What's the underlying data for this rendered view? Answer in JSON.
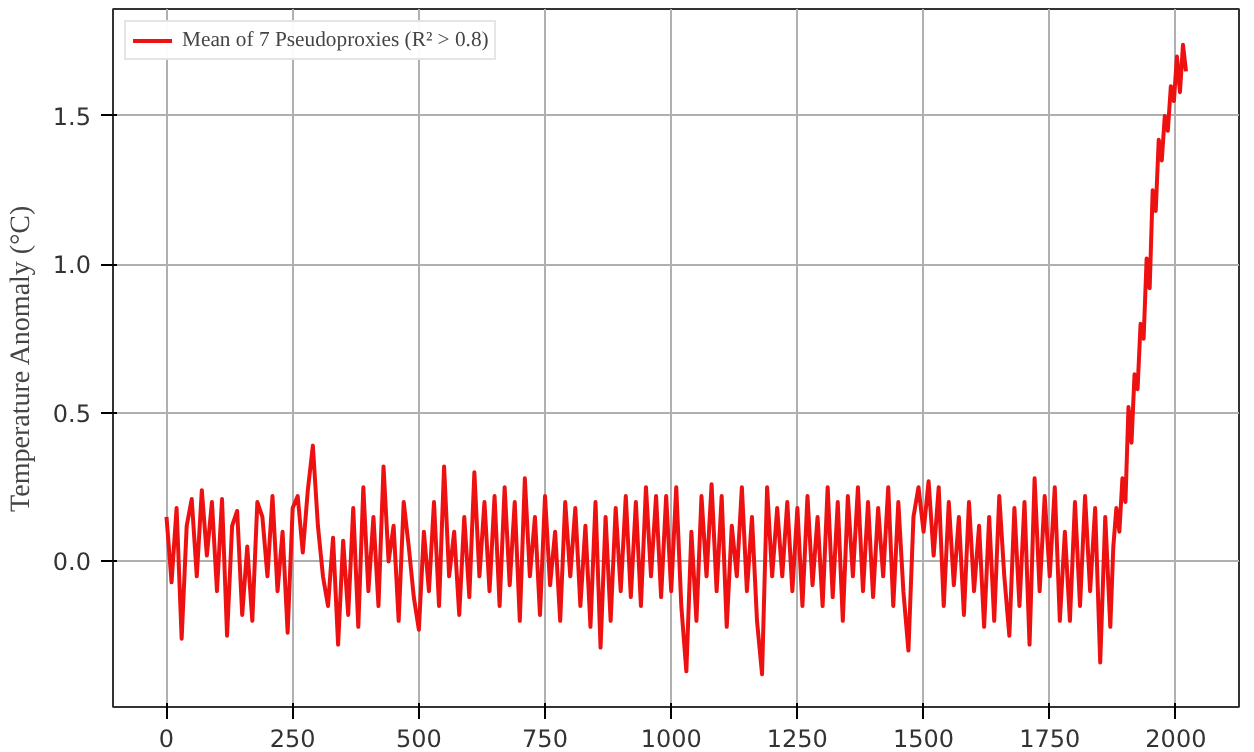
{
  "chart_data": {
    "type": "line",
    "ylabel": "Temperature Anomaly (°C)",
    "x": [
      0,
      10,
      20,
      30,
      40,
      50,
      60,
      70,
      80,
      90,
      100,
      110,
      120,
      130,
      140,
      150,
      160,
      170,
      180,
      190,
      200,
      210,
      220,
      230,
      240,
      250,
      260,
      270,
      280,
      290,
      300,
      310,
      320,
      330,
      340,
      350,
      360,
      370,
      380,
      390,
      400,
      410,
      420,
      430,
      440,
      450,
      460,
      470,
      480,
      490,
      500,
      510,
      520,
      530,
      540,
      550,
      560,
      570,
      580,
      590,
      600,
      610,
      620,
      630,
      640,
      650,
      660,
      670,
      680,
      690,
      700,
      710,
      720,
      730,
      740,
      750,
      760,
      770,
      780,
      790,
      800,
      810,
      820,
      830,
      840,
      850,
      860,
      870,
      880,
      890,
      900,
      910,
      920,
      930,
      940,
      950,
      960,
      970,
      980,
      990,
      1000,
      1010,
      1020,
      1030,
      1040,
      1050,
      1060,
      1070,
      1080,
      1090,
      1100,
      1110,
      1120,
      1130,
      1140,
      1150,
      1160,
      1170,
      1180,
      1190,
      1200,
      1210,
      1220,
      1230,
      1240,
      1250,
      1260,
      1270,
      1280,
      1290,
      1300,
      1310,
      1320,
      1330,
      1340,
      1350,
      1360,
      1370,
      1380,
      1390,
      1400,
      1410,
      1420,
      1430,
      1440,
      1450,
      1460,
      1470,
      1480,
      1490,
      1500,
      1510,
      1520,
      1530,
      1540,
      1550,
      1560,
      1570,
      1580,
      1590,
      1600,
      1610,
      1620,
      1630,
      1640,
      1650,
      1660,
      1670,
      1680,
      1690,
      1700,
      1710,
      1720,
      1730,
      1740,
      1750,
      1760,
      1770,
      1780,
      1790,
      1800,
      1810,
      1820,
      1830,
      1840,
      1850,
      1860,
      1870,
      1876,
      1882,
      1888,
      1894,
      1900,
      1906,
      1912,
      1918,
      1924,
      1930,
      1936,
      1942,
      1948,
      1954,
      1960,
      1966,
      1972,
      1978,
      1984,
      1990,
      1996,
      2002,
      2008,
      2014,
      2020
    ],
    "series": [
      {
        "name": "Mean of 7 Pseudoproxies (R² > 0.8)",
        "color": "#ee1111",
        "values": [
          0.15,
          -0.07,
          0.18,
          -0.26,
          0.12,
          0.21,
          -0.05,
          0.24,
          0.02,
          0.2,
          -0.1,
          0.21,
          -0.25,
          0.12,
          0.17,
          -0.18,
          0.05,
          -0.2,
          0.2,
          0.15,
          -0.05,
          0.22,
          -0.1,
          0.1,
          -0.24,
          0.18,
          0.22,
          0.03,
          0.24,
          0.39,
          0.12,
          -0.05,
          -0.15,
          0.08,
          -0.28,
          0.07,
          -0.18,
          0.18,
          -0.22,
          0.25,
          -0.1,
          0.15,
          -0.15,
          0.32,
          0.0,
          0.12,
          -0.2,
          0.2,
          0.05,
          -0.12,
          -0.23,
          0.1,
          -0.1,
          0.2,
          -0.15,
          0.32,
          -0.05,
          0.1,
          -0.18,
          0.15,
          -0.12,
          0.3,
          -0.05,
          0.2,
          -0.1,
          0.22,
          -0.15,
          0.25,
          -0.08,
          0.2,
          -0.2,
          0.28,
          -0.05,
          0.15,
          -0.18,
          0.22,
          -0.08,
          0.1,
          -0.2,
          0.2,
          -0.05,
          0.18,
          -0.15,
          0.12,
          -0.22,
          0.2,
          -0.29,
          0.15,
          -0.2,
          0.18,
          -0.1,
          0.22,
          -0.12,
          0.2,
          -0.15,
          0.25,
          -0.05,
          0.22,
          -0.12,
          0.22,
          -0.1,
          0.25,
          -0.15,
          -0.37,
          0.1,
          -0.2,
          0.22,
          -0.05,
          0.26,
          -0.1,
          0.22,
          -0.22,
          0.12,
          -0.05,
          0.25,
          -0.1,
          0.15,
          -0.2,
          -0.38,
          0.25,
          -0.05,
          0.18,
          -0.05,
          0.2,
          -0.1,
          0.18,
          -0.15,
          0.22,
          -0.08,
          0.15,
          -0.15,
          0.25,
          -0.12,
          0.2,
          -0.2,
          0.22,
          -0.05,
          0.25,
          -0.1,
          0.2,
          -0.12,
          0.18,
          -0.05,
          0.25,
          -0.15,
          0.2,
          -0.1,
          -0.3,
          0.15,
          0.25,
          0.1,
          0.27,
          0.02,
          0.25,
          -0.15,
          0.2,
          -0.08,
          0.15,
          -0.18,
          0.2,
          -0.1,
          0.12,
          -0.22,
          0.15,
          -0.2,
          0.22,
          -0.05,
          -0.25,
          0.18,
          -0.15,
          0.2,
          -0.28,
          0.28,
          -0.1,
          0.22,
          -0.05,
          0.25,
          -0.2,
          0.1,
          -0.2,
          0.2,
          -0.15,
          0.22,
          -0.1,
          0.18,
          -0.34,
          0.15,
          -0.22,
          0.05,
          0.18,
          0.1,
          0.28,
          0.2,
          0.52,
          0.4,
          0.63,
          0.58,
          0.8,
          0.75,
          1.02,
          0.92,
          1.25,
          1.18,
          1.42,
          1.35,
          1.5,
          1.45,
          1.6,
          1.55,
          1.7,
          1.58,
          1.74,
          1.65
        ]
      }
    ],
    "xlim": [
      -106,
      2125
    ],
    "ylim": [
      -0.49,
      1.86
    ],
    "xticks": [
      0,
      250,
      500,
      750,
      1000,
      1250,
      1500,
      1750,
      2000
    ],
    "yticks": [
      {
        "value": 0,
        "label": "0.0"
      },
      {
        "value": 0.5,
        "label": "0.5"
      },
      {
        "value": 1,
        "label": "1.0"
      },
      {
        "value": 1.5,
        "label": "1.5"
      }
    ],
    "grid": true,
    "legend": "top left",
    "line_style": "solid"
  }
}
